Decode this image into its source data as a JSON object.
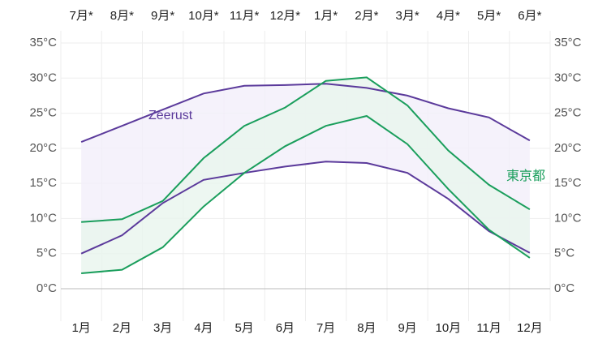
{
  "chart_data": {
    "type": "line",
    "categories": [
      "1月",
      "2月",
      "3月",
      "4月",
      "5月",
      "6月",
      "7月",
      "8月",
      "9月",
      "10月",
      "11月",
      "12月"
    ],
    "top_categories": [
      "7月*",
      "8月*",
      "9月*",
      "10月*",
      "11月*",
      "12月*",
      "1月*",
      "2月*",
      "3月*",
      "4月*",
      "5月*",
      "6月*"
    ],
    "series": [
      {
        "name": "Zeerust",
        "color": "#5b3a9b",
        "band_color": "#f3effa",
        "high": [
          20.9,
          23.2,
          25.5,
          27.8,
          28.9,
          29.0,
          29.2,
          28.6,
          27.5,
          25.7,
          24.4,
          21.1
        ],
        "low": [
          5.0,
          7.6,
          12.2,
          15.5,
          16.5,
          17.4,
          18.1,
          17.9,
          16.5,
          12.8,
          8.2,
          5.1
        ]
      },
      {
        "name": "東京都",
        "color": "#1a9e5c",
        "band_color": "#e8f5ee",
        "high": [
          9.5,
          9.9,
          12.5,
          18.6,
          23.2,
          25.8,
          29.6,
          30.1,
          26.1,
          19.7,
          14.8,
          11.3
        ],
        "low": [
          2.2,
          2.7,
          5.9,
          11.7,
          16.5,
          20.3,
          23.2,
          24.6,
          20.6,
          14.2,
          8.4,
          4.4
        ]
      }
    ],
    "ylim": [
      0,
      35
    ],
    "yticks": [
      {
        "value": 0,
        "label": "0°C"
      },
      {
        "value": 5,
        "label": "5°C"
      },
      {
        "value": 10,
        "label": "10°C"
      },
      {
        "value": 15,
        "label": "15°C"
      },
      {
        "value": 20,
        "label": "20°C"
      },
      {
        "value": 25,
        "label": "25°C"
      },
      {
        "value": 30,
        "label": "30°C"
      },
      {
        "value": 35,
        "label": "35°C"
      }
    ],
    "grid": true
  }
}
